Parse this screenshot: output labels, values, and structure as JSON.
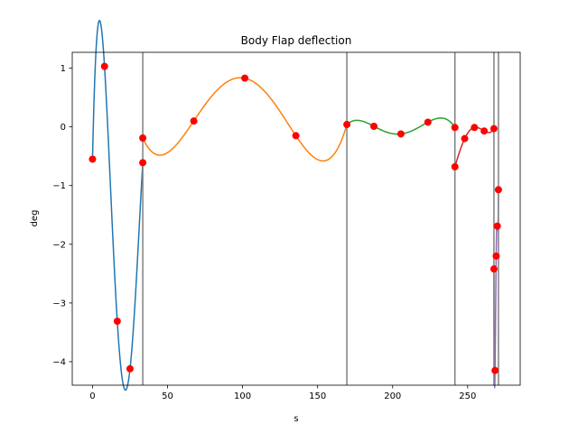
{
  "chart_data": {
    "type": "line",
    "title": "Body Flap deflection",
    "xlabel": "s",
    "ylabel": "deg",
    "xlim": [
      -13.5,
      285
    ],
    "ylim": [
      -4.4,
      1.27
    ],
    "xticks": [
      0,
      50,
      100,
      150,
      200,
      250
    ],
    "yticks": [
      -4,
      -3,
      -2,
      -1,
      0,
      1
    ],
    "xtick_labels": [
      "0",
      "50",
      "100",
      "150",
      "200",
      "250"
    ],
    "ytick_labels": [
      "−4",
      "−3",
      "−2",
      "−1",
      "0",
      "1"
    ],
    "grid": false,
    "phase_boundaries": [
      33.5,
      169.5,
      241.5,
      267.5,
      270.5
    ],
    "series": [
      {
        "color": "#1f77b4",
        "points": [
          [
            0,
            -0.55
          ],
          [
            8,
            1.03
          ],
          [
            16.5,
            -3.31
          ],
          [
            25,
            -4.12
          ],
          [
            33.5,
            -0.61
          ]
        ]
      },
      {
        "color": "#ff7f0e",
        "points": [
          [
            33.5,
            -0.19
          ],
          [
            67.5,
            0.1
          ],
          [
            101.5,
            0.83
          ],
          [
            135.5,
            -0.15
          ],
          [
            169.5,
            0.04
          ]
        ]
      },
      {
        "color": "#2ca02c",
        "points": [
          [
            169.5,
            0.04
          ],
          [
            187.5,
            0.01
          ],
          [
            205.5,
            -0.12
          ],
          [
            223.5,
            0.08
          ],
          [
            241.5,
            -0.01
          ]
        ]
      },
      {
        "color": "#d62728",
        "points": [
          [
            241.5,
            -0.68
          ],
          [
            248,
            -0.2
          ],
          [
            254.5,
            -0.01
          ],
          [
            261,
            -0.07
          ],
          [
            267.5,
            -0.03
          ]
        ]
      },
      {
        "color": "#9467bd",
        "points": [
          [
            267.5,
            -2.42
          ],
          [
            268.25,
            -4.15
          ],
          [
            269,
            -2.2
          ],
          [
            269.75,
            -1.69
          ],
          [
            270.5,
            -1.07
          ]
        ]
      }
    ],
    "collocation_points": [
      [
        0,
        -0.55
      ],
      [
        8,
        1.03
      ],
      [
        16.5,
        -3.31
      ],
      [
        25,
        -4.12
      ],
      [
        33.5,
        -0.61
      ],
      [
        33.5,
        -0.19
      ],
      [
        67.5,
        0.1
      ],
      [
        101.5,
        0.83
      ],
      [
        135.5,
        -0.15
      ],
      [
        169.5,
        0.04
      ],
      [
        187.5,
        0.01
      ],
      [
        205.5,
        -0.12
      ],
      [
        223.5,
        0.08
      ],
      [
        241.5,
        -0.01
      ],
      [
        241.5,
        -0.68
      ],
      [
        248,
        -0.2
      ],
      [
        254.5,
        -0.01
      ],
      [
        261,
        -0.07
      ],
      [
        267.5,
        -0.03
      ],
      [
        267.5,
        -2.42
      ],
      [
        268.25,
        -4.15
      ],
      [
        269,
        -2.2
      ],
      [
        269.75,
        -1.69
      ],
      [
        270.5,
        -1.07
      ]
    ],
    "marker_color": "#ff0000",
    "boundary_color": "#808080"
  }
}
